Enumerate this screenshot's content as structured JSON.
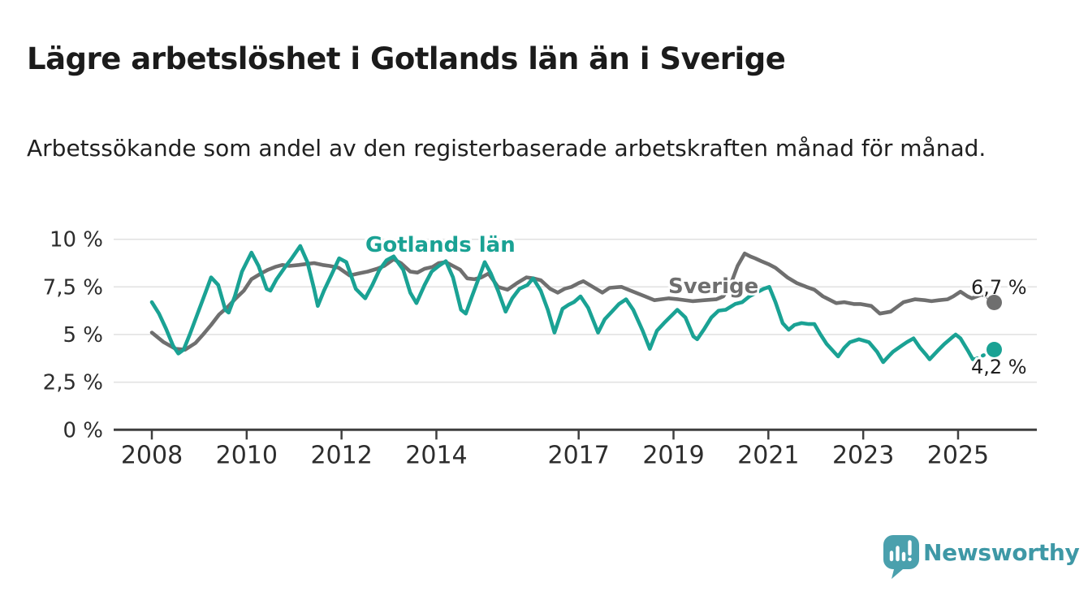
{
  "title": "Lägre arbetslöshet i Gotlands län än i Sverige",
  "subtitle": "Arbetssökande som andel av den registerbaserade arbetskraften månad för månad.",
  "colors": {
    "title": "#1b1b1b",
    "subtitle": "#202020",
    "grid": "#e2e2e2",
    "axis": "#3f3f3f",
    "tick_label": "#2d2d2d",
    "end_label": "#1f1f1f",
    "teal": "#1aa294",
    "gray": "#6f6f6f"
  },
  "logo": {
    "icon": "speech-bubble-bar-chart-icon",
    "text": "Newsworthy",
    "color": "#4aa0ad",
    "text_color": "#3e98a6"
  },
  "chart_data": {
    "type": "line",
    "title": "Lägre arbetslöshet i Gotlands län än i Sverige",
    "xlabel": "",
    "ylabel": "Arbetssökande som andel av den registerbaserade arbetskraften",
    "x_unit": "decimal-year (monthly data 2008–Oct 2025)",
    "y_unit": "percent",
    "grid": "horizontal",
    "legend_position": "inline-labels",
    "y_axis": {
      "range": [
        0,
        10
      ],
      "ticks": [
        {
          "v": 10,
          "label": "10 %"
        },
        {
          "v": 7.5,
          "label": "7,5 %"
        },
        {
          "v": 5,
          "label": "5 %"
        },
        {
          "v": 2.5,
          "label": "2,5 %"
        },
        {
          "v": 0,
          "label": "0 %"
        }
      ]
    },
    "x_axis": {
      "range": [
        2007.2,
        2026.66
      ],
      "ticks": [
        {
          "v": 2008,
          "label": "2008"
        },
        {
          "v": 2010,
          "label": "2010"
        },
        {
          "v": 2012,
          "label": "2012"
        },
        {
          "v": 2014,
          "label": "2014"
        },
        {
          "v": 2017,
          "label": "2017"
        },
        {
          "v": 2019,
          "label": "2019"
        },
        {
          "v": 2021,
          "label": "2021"
        },
        {
          "v": 2023,
          "label": "2023"
        },
        {
          "v": 2025,
          "label": "2025"
        }
      ]
    },
    "series": [
      {
        "name": "Sverige",
        "label": "Sverige",
        "color": "#6f6f6f",
        "end_label": "6,7 %",
        "end_value": 6.7,
        "end_x": 2025.77,
        "points": [
          [
            2008.0,
            5.1
          ],
          [
            2008.25,
            4.6
          ],
          [
            2008.5,
            4.25
          ],
          [
            2008.7,
            4.2
          ],
          [
            2008.92,
            4.55
          ],
          [
            2009.08,
            5.0
          ],
          [
            2009.25,
            5.5
          ],
          [
            2009.42,
            6.05
          ],
          [
            2009.6,
            6.45
          ],
          [
            2009.77,
            6.9
          ],
          [
            2009.94,
            7.3
          ],
          [
            2010.1,
            7.9
          ],
          [
            2010.3,
            8.2
          ],
          [
            2010.45,
            8.4
          ],
          [
            2010.6,
            8.55
          ],
          [
            2010.75,
            8.65
          ],
          [
            2010.9,
            8.6
          ],
          [
            2011.1,
            8.65
          ],
          [
            2011.25,
            8.7
          ],
          [
            2011.42,
            8.75
          ],
          [
            2011.6,
            8.65
          ],
          [
            2011.75,
            8.6
          ],
          [
            2011.94,
            8.5
          ],
          [
            2012.17,
            8.1
          ],
          [
            2012.35,
            8.2
          ],
          [
            2012.55,
            8.3
          ],
          [
            2012.75,
            8.45
          ],
          [
            2012.9,
            8.6
          ],
          [
            2013.1,
            8.95
          ],
          [
            2013.25,
            8.75
          ],
          [
            2013.45,
            8.3
          ],
          [
            2013.6,
            8.25
          ],
          [
            2013.75,
            8.45
          ],
          [
            2013.92,
            8.55
          ],
          [
            2014.05,
            8.75
          ],
          [
            2014.2,
            8.8
          ],
          [
            2014.35,
            8.6
          ],
          [
            2014.5,
            8.4
          ],
          [
            2014.65,
            7.95
          ],
          [
            2014.8,
            7.9
          ],
          [
            2014.95,
            8.0
          ],
          [
            2015.1,
            8.2
          ],
          [
            2015.3,
            7.5
          ],
          [
            2015.5,
            7.35
          ],
          [
            2015.7,
            7.7
          ],
          [
            2015.9,
            8.0
          ],
          [
            2016.05,
            7.95
          ],
          [
            2016.2,
            7.85
          ],
          [
            2016.4,
            7.4
          ],
          [
            2016.56,
            7.2
          ],
          [
            2016.7,
            7.4
          ],
          [
            2016.85,
            7.5
          ],
          [
            2017.0,
            7.7
          ],
          [
            2017.1,
            7.8
          ],
          [
            2017.3,
            7.5
          ],
          [
            2017.5,
            7.2
          ],
          [
            2017.65,
            7.45
          ],
          [
            2017.9,
            7.5
          ],
          [
            2018.1,
            7.3
          ],
          [
            2018.4,
            7.0
          ],
          [
            2018.6,
            6.8
          ],
          [
            2018.9,
            6.9
          ],
          [
            2019.1,
            6.85
          ],
          [
            2019.4,
            6.75
          ],
          [
            2019.65,
            6.8
          ],
          [
            2019.9,
            6.85
          ],
          [
            2020.05,
            7.0
          ],
          [
            2020.2,
            7.6
          ],
          [
            2020.35,
            8.6
          ],
          [
            2020.5,
            9.25
          ],
          [
            2020.62,
            9.1
          ],
          [
            2020.72,
            9.0
          ],
          [
            2020.85,
            8.85
          ],
          [
            2021.0,
            8.7
          ],
          [
            2021.15,
            8.5
          ],
          [
            2021.4,
            8.0
          ],
          [
            2021.6,
            7.7
          ],
          [
            2021.8,
            7.5
          ],
          [
            2021.97,
            7.35
          ],
          [
            2022.15,
            7.0
          ],
          [
            2022.43,
            6.65
          ],
          [
            2022.6,
            6.7
          ],
          [
            2022.8,
            6.6
          ],
          [
            2022.94,
            6.6
          ],
          [
            2023.17,
            6.5
          ],
          [
            2023.35,
            6.1
          ],
          [
            2023.58,
            6.2
          ],
          [
            2023.85,
            6.7
          ],
          [
            2024.09,
            6.85
          ],
          [
            2024.3,
            6.8
          ],
          [
            2024.44,
            6.75
          ],
          [
            2024.6,
            6.8
          ],
          [
            2024.78,
            6.85
          ],
          [
            2024.9,
            7.0
          ],
          [
            2025.05,
            7.25
          ],
          [
            2025.2,
            7.0
          ],
          [
            2025.29,
            6.9
          ],
          [
            2025.5,
            7.1
          ],
          [
            2025.6,
            7.0
          ],
          [
            2025.77,
            6.7
          ]
        ]
      },
      {
        "name": "Gotlands län",
        "label": "Gotlands län",
        "color": "#1aa294",
        "end_label": "4,2 %",
        "end_value": 4.2,
        "end_x": 2025.77,
        "points": [
          [
            2008.0,
            6.7
          ],
          [
            2008.15,
            6.1
          ],
          [
            2008.3,
            5.3
          ],
          [
            2008.45,
            4.4
          ],
          [
            2008.56,
            4.0
          ],
          [
            2008.67,
            4.2
          ],
          [
            2008.8,
            5.0
          ],
          [
            2008.95,
            6.0
          ],
          [
            2009.1,
            7.0
          ],
          [
            2009.25,
            8.0
          ],
          [
            2009.4,
            7.6
          ],
          [
            2009.55,
            6.3
          ],
          [
            2009.62,
            6.15
          ],
          [
            2009.75,
            7.0
          ],
          [
            2009.9,
            8.3
          ],
          [
            2010.1,
            9.3
          ],
          [
            2010.25,
            8.6
          ],
          [
            2010.42,
            7.4
          ],
          [
            2010.5,
            7.3
          ],
          [
            2010.63,
            7.9
          ],
          [
            2010.8,
            8.5
          ],
          [
            2010.95,
            9.0
          ],
          [
            2011.13,
            9.65
          ],
          [
            2011.28,
            8.8
          ],
          [
            2011.42,
            7.4
          ],
          [
            2011.5,
            6.5
          ],
          [
            2011.63,
            7.3
          ],
          [
            2011.8,
            8.2
          ],
          [
            2011.95,
            9.0
          ],
          [
            2012.1,
            8.8
          ],
          [
            2012.3,
            7.4
          ],
          [
            2012.5,
            6.9
          ],
          [
            2012.65,
            7.6
          ],
          [
            2012.8,
            8.4
          ],
          [
            2012.95,
            8.9
          ],
          [
            2013.1,
            9.1
          ],
          [
            2013.3,
            8.4
          ],
          [
            2013.45,
            7.2
          ],
          [
            2013.58,
            6.65
          ],
          [
            2013.75,
            7.6
          ],
          [
            2013.9,
            8.3
          ],
          [
            2014.05,
            8.6
          ],
          [
            2014.2,
            8.85
          ],
          [
            2014.35,
            8.0
          ],
          [
            2014.52,
            6.3
          ],
          [
            2014.62,
            6.1
          ],
          [
            2014.75,
            7.0
          ],
          [
            2014.9,
            8.0
          ],
          [
            2015.02,
            8.8
          ],
          [
            2015.15,
            8.2
          ],
          [
            2015.3,
            7.3
          ],
          [
            2015.46,
            6.2
          ],
          [
            2015.6,
            6.9
          ],
          [
            2015.75,
            7.4
          ],
          [
            2015.92,
            7.6
          ],
          [
            2016.04,
            7.95
          ],
          [
            2016.2,
            7.3
          ],
          [
            2016.35,
            6.3
          ],
          [
            2016.49,
            5.1
          ],
          [
            2016.66,
            6.35
          ],
          [
            2016.78,
            6.55
          ],
          [
            2016.9,
            6.7
          ],
          [
            2017.04,
            7.0
          ],
          [
            2017.2,
            6.4
          ],
          [
            2017.41,
            5.1
          ],
          [
            2017.55,
            5.8
          ],
          [
            2017.7,
            6.2
          ],
          [
            2017.85,
            6.6
          ],
          [
            2018.0,
            6.85
          ],
          [
            2018.15,
            6.3
          ],
          [
            2018.35,
            5.2
          ],
          [
            2018.5,
            4.25
          ],
          [
            2018.65,
            5.2
          ],
          [
            2018.8,
            5.6
          ],
          [
            2019.0,
            6.1
          ],
          [
            2019.08,
            6.3
          ],
          [
            2019.25,
            5.9
          ],
          [
            2019.42,
            4.9
          ],
          [
            2019.5,
            4.75
          ],
          [
            2019.65,
            5.3
          ],
          [
            2019.8,
            5.9
          ],
          [
            2019.95,
            6.25
          ],
          [
            2020.1,
            6.3
          ],
          [
            2020.3,
            6.6
          ],
          [
            2020.45,
            6.7
          ],
          [
            2020.6,
            7.0
          ],
          [
            2020.75,
            7.2
          ],
          [
            2020.9,
            7.4
          ],
          [
            2021.02,
            7.5
          ],
          [
            2021.15,
            6.7
          ],
          [
            2021.3,
            5.6
          ],
          [
            2021.43,
            5.25
          ],
          [
            2021.55,
            5.5
          ],
          [
            2021.7,
            5.6
          ],
          [
            2021.85,
            5.55
          ],
          [
            2021.97,
            5.55
          ],
          [
            2022.1,
            5.0
          ],
          [
            2022.23,
            4.5
          ],
          [
            2022.47,
            3.85
          ],
          [
            2022.6,
            4.3
          ],
          [
            2022.72,
            4.6
          ],
          [
            2022.91,
            4.75
          ],
          [
            2023.05,
            4.65
          ],
          [
            2023.12,
            4.6
          ],
          [
            2023.29,
            4.1
          ],
          [
            2023.42,
            3.55
          ],
          [
            2023.55,
            3.9
          ],
          [
            2023.63,
            4.1
          ],
          [
            2023.8,
            4.4
          ],
          [
            2023.92,
            4.6
          ],
          [
            2024.06,
            4.8
          ],
          [
            2024.2,
            4.3
          ],
          [
            2024.32,
            3.95
          ],
          [
            2024.4,
            3.7
          ],
          [
            2024.57,
            4.15
          ],
          [
            2024.71,
            4.5
          ],
          [
            2024.85,
            4.8
          ],
          [
            2024.95,
            5.0
          ],
          [
            2025.05,
            4.8
          ],
          [
            2025.22,
            4.1
          ],
          [
            2025.31,
            3.7
          ],
          [
            2025.38,
            3.72
          ]
        ],
        "dashed_tail": [
          [
            2025.48,
            3.85
          ],
          [
            2025.62,
            4.0
          ],
          [
            2025.77,
            4.2
          ]
        ]
      }
    ]
  }
}
